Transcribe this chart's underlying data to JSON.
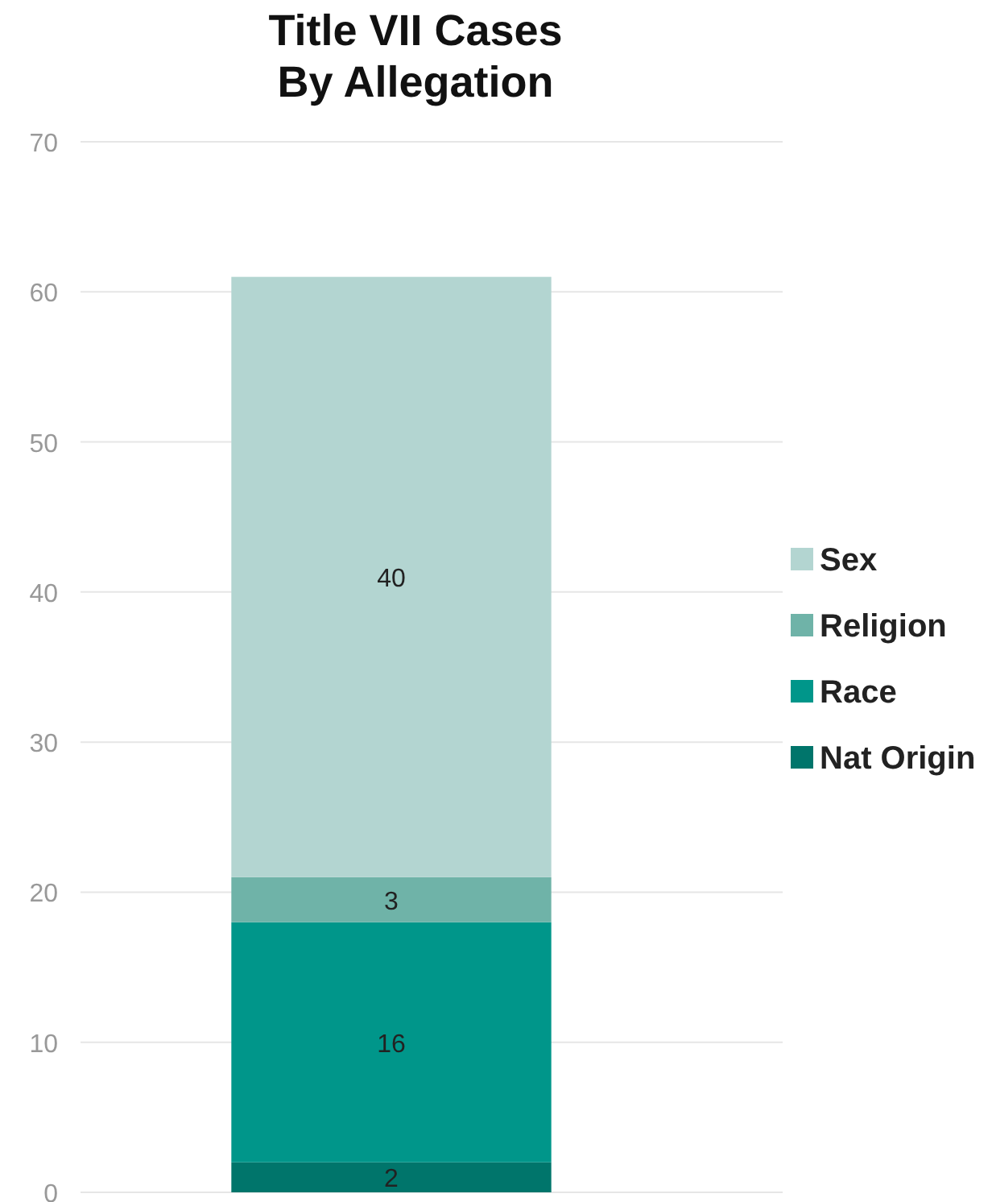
{
  "chart_data": {
    "type": "bar",
    "title": "Title VII Cases\nBy Allegation",
    "categories": [
      null
    ],
    "stacked": true,
    "data_labels": true,
    "grid": "y",
    "legend": "right",
    "ylim": [
      0,
      70
    ],
    "yticks": [
      0,
      10,
      20,
      30,
      40,
      50,
      60,
      70
    ],
    "series": [
      {
        "name": "Nat Origin",
        "color": "#00756b",
        "values": [
          2
        ]
      },
      {
        "name": "Race",
        "color": "#00968a",
        "values": [
          16
        ]
      },
      {
        "name": "Religion",
        "color": "#6fb3a8",
        "values": [
          3
        ]
      },
      {
        "name": "Sex",
        "color": "#b3d5d1",
        "values": [
          40
        ]
      }
    ]
  }
}
